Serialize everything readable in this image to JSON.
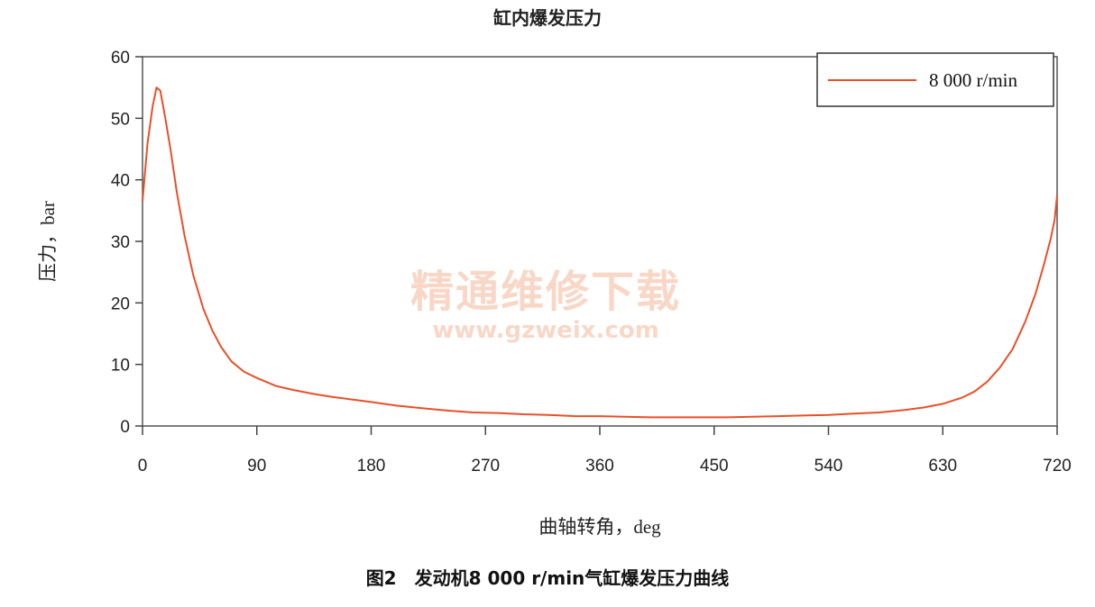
{
  "chart_data": {
    "type": "line",
    "title": "缸内爆发压力",
    "xlabel": "曲轴转角，deg",
    "ylabel": "压力，bar",
    "xlim": [
      0,
      720
    ],
    "ylim": [
      0,
      60
    ],
    "x_ticks": [
      "0",
      "90",
      "180",
      "270",
      "360",
      "450",
      "540",
      "630",
      "720"
    ],
    "y_ticks": [
      "0",
      "10",
      "20",
      "30",
      "40",
      "50",
      "60"
    ],
    "grid": false,
    "legend_position": "top-right",
    "series": [
      {
        "name": "8 000 r/min",
        "color": "#e8502a",
        "x": [
          0,
          4,
          8,
          11,
          14,
          18,
          22,
          27,
          33,
          40,
          48,
          55,
          62,
          70,
          80,
          90,
          105,
          120,
          135,
          150,
          165,
          180,
          200,
          220,
          240,
          260,
          280,
          300,
          320,
          340,
          360,
          380,
          400,
          420,
          440,
          460,
          480,
          500,
          520,
          540,
          560,
          580,
          600,
          615,
          630,
          645,
          655,
          665,
          675,
          685,
          695,
          703,
          710,
          715,
          718,
          720
        ],
        "y": [
          36.5,
          46,
          52,
          55,
          54.5,
          50,
          45,
          38,
          31,
          24.5,
          19,
          15.5,
          12.8,
          10.5,
          8.8,
          7.8,
          6.5,
          5.8,
          5.2,
          4.7,
          4.3,
          3.9,
          3.3,
          2.9,
          2.5,
          2.2,
          2.1,
          1.9,
          1.8,
          1.6,
          1.6,
          1.5,
          1.4,
          1.4,
          1.4,
          1.4,
          1.5,
          1.6,
          1.7,
          1.8,
          2.0,
          2.2,
          2.6,
          3.0,
          3.6,
          4.6,
          5.6,
          7.2,
          9.5,
          12.5,
          17.0,
          21.5,
          26.5,
          30.5,
          33.5,
          37.5
        ]
      }
    ]
  },
  "watermark": {
    "text_cn": "精通维修下载",
    "text_en": "www.gzweix.com"
  },
  "caption": "图2　发动机8 000 r/min气缸爆发压力曲线"
}
